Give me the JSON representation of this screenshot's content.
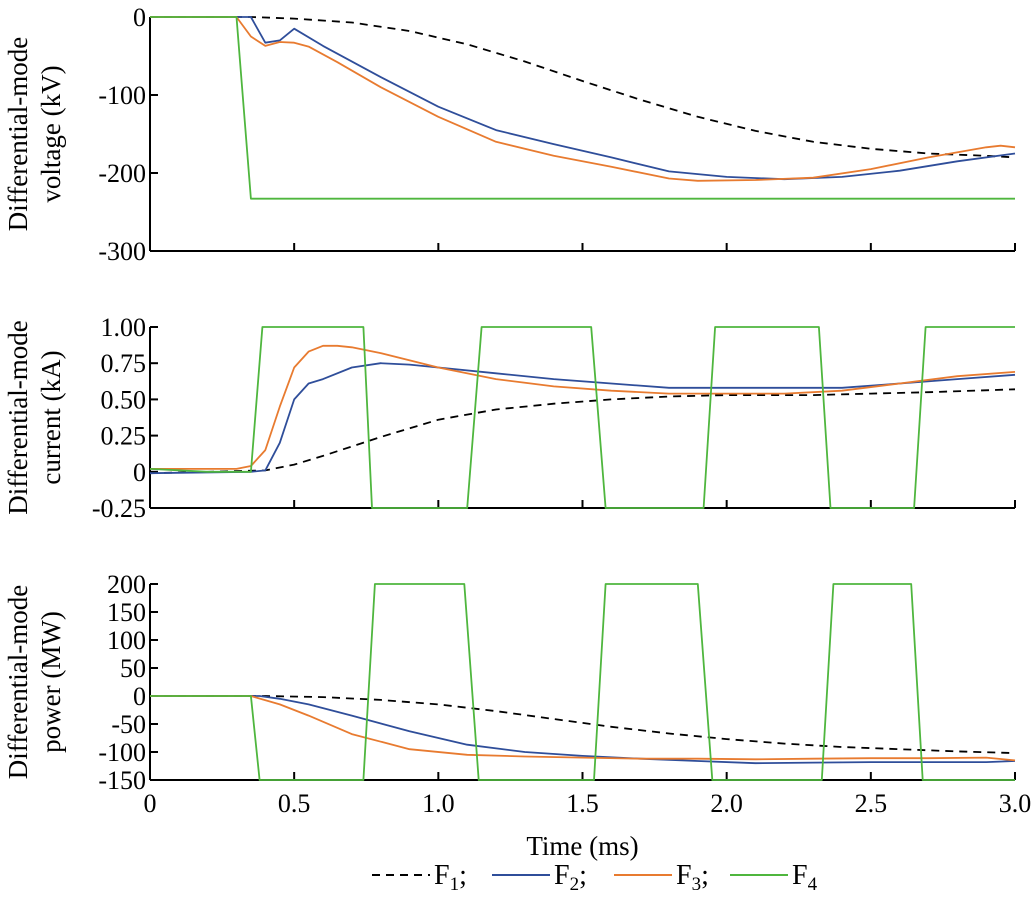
{
  "chart_data": [
    {
      "type": "line",
      "id": "voltage",
      "ylabel_lines": [
        "Differential-mode",
        "voltage (kV)"
      ],
      "xlim": [
        0,
        3.0
      ],
      "ylim": [
        -300,
        0
      ],
      "yticks": [
        0,
        -100,
        -200,
        -300
      ],
      "ytick_labels": [
        "0",
        "-100",
        "-200",
        "-300"
      ],
      "xticks": [
        0.5,
        1.0,
        1.5,
        2.0,
        2.5,
        3.0
      ],
      "series": [
        {
          "key": "F1",
          "color": "#000000",
          "dash": "8,6",
          "points": [
            [
              0,
              0
            ],
            [
              0.35,
              0
            ],
            [
              0.5,
              -2
            ],
            [
              0.7,
              -7
            ],
            [
              0.9,
              -18
            ],
            [
              1.1,
              -35
            ],
            [
              1.3,
              -57
            ],
            [
              1.5,
              -82
            ],
            [
              1.7,
              -106
            ],
            [
              1.9,
              -128
            ],
            [
              2.1,
              -146
            ],
            [
              2.3,
              -160
            ],
            [
              2.5,
              -169
            ],
            [
              2.7,
              -175
            ],
            [
              2.9,
              -178
            ],
            [
              3.0,
              -180
            ]
          ]
        },
        {
          "key": "F2",
          "color": "#2f4e9a",
          "dash": "",
          "points": [
            [
              0,
              0
            ],
            [
              0.35,
              0
            ],
            [
              0.4,
              -33
            ],
            [
              0.45,
              -30
            ],
            [
              0.5,
              -15
            ],
            [
              0.6,
              -37
            ],
            [
              0.8,
              -77
            ],
            [
              1.0,
              -115
            ],
            [
              1.2,
              -145
            ],
            [
              1.4,
              -163
            ],
            [
              1.6,
              -180
            ],
            [
              1.8,
              -198
            ],
            [
              2.0,
              -205
            ],
            [
              2.2,
              -208
            ],
            [
              2.4,
              -205
            ],
            [
              2.6,
              -197
            ],
            [
              2.8,
              -185
            ],
            [
              3.0,
              -175
            ]
          ]
        },
        {
          "key": "F3",
          "color": "#e87b30",
          "dash": "",
          "points": [
            [
              0,
              0
            ],
            [
              0.3,
              0
            ],
            [
              0.35,
              -25
            ],
            [
              0.4,
              -37
            ],
            [
              0.45,
              -32
            ],
            [
              0.5,
              -33
            ],
            [
              0.55,
              -38
            ],
            [
              0.65,
              -58
            ],
            [
              0.8,
              -90
            ],
            [
              1.0,
              -128
            ],
            [
              1.2,
              -160
            ],
            [
              1.4,
              -178
            ],
            [
              1.6,
              -192
            ],
            [
              1.8,
              -207
            ],
            [
              1.9,
              -210
            ],
            [
              2.1,
              -209
            ],
            [
              2.3,
              -206
            ],
            [
              2.5,
              -195
            ],
            [
              2.7,
              -180
            ],
            [
              2.9,
              -167
            ],
            [
              2.95,
              -165
            ],
            [
              3.0,
              -167
            ]
          ]
        },
        {
          "key": "F4",
          "color": "#4fb63e",
          "dash": "",
          "points": [
            [
              0,
              0
            ],
            [
              0.3,
              0
            ],
            [
              0.35,
              -233
            ],
            [
              3.0,
              -233
            ]
          ]
        }
      ]
    },
    {
      "type": "line",
      "id": "current",
      "ylabel_lines": [
        "Differential-mode",
        "current (kA)"
      ],
      "xlim": [
        0,
        3.0
      ],
      "ylim": [
        -0.25,
        1.0
      ],
      "yticks": [
        1.0,
        0.75,
        0.5,
        0.25,
        0,
        -0.25
      ],
      "ytick_labels": [
        "1.00",
        "0.75",
        "0.50",
        "0.25",
        "0",
        "-0.25"
      ],
      "xticks": [
        0.5,
        1.0,
        1.5,
        2.0,
        2.5,
        3.0
      ],
      "series": [
        {
          "key": "F1",
          "color": "#000000",
          "dash": "8,6",
          "points": [
            [
              0,
              -0.01
            ],
            [
              0.4,
              0.01
            ],
            [
              0.5,
              0.05
            ],
            [
              0.6,
              0.11
            ],
            [
              0.8,
              0.24
            ],
            [
              1.0,
              0.36
            ],
            [
              1.2,
              0.43
            ],
            [
              1.4,
              0.47
            ],
            [
              1.6,
              0.5
            ],
            [
              1.8,
              0.52
            ],
            [
              2.0,
              0.53
            ],
            [
              2.3,
              0.53
            ],
            [
              2.5,
              0.54
            ],
            [
              2.7,
              0.55
            ],
            [
              3.0,
              0.57
            ]
          ]
        },
        {
          "key": "F2",
          "color": "#2f4e9a",
          "dash": "",
          "points": [
            [
              0,
              -0.01
            ],
            [
              0.35,
              0.0
            ],
            [
              0.4,
              0.01
            ],
            [
              0.45,
              0.2
            ],
            [
              0.5,
              0.5
            ],
            [
              0.55,
              0.61
            ],
            [
              0.6,
              0.64
            ],
            [
              0.7,
              0.72
            ],
            [
              0.8,
              0.75
            ],
            [
              0.9,
              0.74
            ],
            [
              1.0,
              0.72
            ],
            [
              1.2,
              0.68
            ],
            [
              1.4,
              0.64
            ],
            [
              1.6,
              0.61
            ],
            [
              1.8,
              0.58
            ],
            [
              2.0,
              0.58
            ],
            [
              2.2,
              0.58
            ],
            [
              2.4,
              0.58
            ],
            [
              2.6,
              0.61
            ],
            [
              2.8,
              0.64
            ],
            [
              3.0,
              0.67
            ]
          ]
        },
        {
          "key": "F3",
          "color": "#e87b30",
          "dash": "",
          "points": [
            [
              0,
              0.02
            ],
            [
              0.3,
              0.02
            ],
            [
              0.35,
              0.04
            ],
            [
              0.4,
              0.15
            ],
            [
              0.45,
              0.45
            ],
            [
              0.5,
              0.72
            ],
            [
              0.55,
              0.83
            ],
            [
              0.6,
              0.87
            ],
            [
              0.65,
              0.87
            ],
            [
              0.7,
              0.86
            ],
            [
              0.8,
              0.82
            ],
            [
              1.0,
              0.72
            ],
            [
              1.2,
              0.64
            ],
            [
              1.4,
              0.59
            ],
            [
              1.6,
              0.56
            ],
            [
              1.8,
              0.54
            ],
            [
              2.0,
              0.54
            ],
            [
              2.2,
              0.54
            ],
            [
              2.4,
              0.56
            ],
            [
              2.6,
              0.61
            ],
            [
              2.8,
              0.66
            ],
            [
              3.0,
              0.69
            ]
          ]
        },
        {
          "key": "F4",
          "color": "#4fb63e",
          "dash": "",
          "points": [
            [
              0,
              0.02
            ],
            [
              0.2,
              0.0
            ],
            [
              0.35,
              0.0
            ],
            [
              0.39,
              1.0
            ],
            [
              0.42,
              1.0
            ],
            [
              0.74,
              1.0
            ],
            [
              0.77,
              -0.25
            ],
            [
              1.1,
              -0.25
            ],
            [
              1.15,
              1.0
            ],
            [
              1.53,
              1.0
            ],
            [
              1.58,
              -0.25
            ],
            [
              1.92,
              -0.25
            ],
            [
              1.96,
              1.0
            ],
            [
              2.32,
              1.0
            ],
            [
              2.36,
              -0.25
            ],
            [
              2.65,
              -0.25
            ],
            [
              2.69,
              1.0
            ],
            [
              3.0,
              1.0
            ]
          ]
        }
      ]
    },
    {
      "type": "line",
      "id": "power",
      "ylabel_lines": [
        "Differential-mode",
        "power (MW)"
      ],
      "xlim": [
        0,
        3.0
      ],
      "ylim": [
        -150,
        200
      ],
      "yticks": [
        200,
        150,
        100,
        50,
        0,
        -50,
        -100,
        -150
      ],
      "ytick_labels": [
        "200",
        "150",
        "100",
        "50",
        "0",
        "-50",
        "-100",
        "-150"
      ],
      "xticks": [
        0,
        0.5,
        1.0,
        1.5,
        2.0,
        2.5,
        3.0
      ],
      "xtick_labels": [
        "0",
        "0.5",
        "1.0",
        "1.5",
        "2.0",
        "2.5",
        "3.0"
      ],
      "xlabel": "Time (ms)",
      "series": [
        {
          "key": "F1",
          "color": "#000000",
          "dash": "8,6",
          "points": [
            [
              0,
              0
            ],
            [
              0.4,
              0
            ],
            [
              0.6,
              -2
            ],
            [
              0.8,
              -7
            ],
            [
              1.0,
              -15
            ],
            [
              1.2,
              -27
            ],
            [
              1.4,
              -41
            ],
            [
              1.6,
              -55
            ],
            [
              1.8,
              -67
            ],
            [
              2.0,
              -77
            ],
            [
              2.2,
              -85
            ],
            [
              2.4,
              -91
            ],
            [
              2.6,
              -95
            ],
            [
              2.8,
              -99
            ],
            [
              3.0,
              -102
            ]
          ]
        },
        {
          "key": "F2",
          "color": "#2f4e9a",
          "dash": "",
          "points": [
            [
              0,
              0
            ],
            [
              0.38,
              0
            ],
            [
              0.45,
              -5
            ],
            [
              0.55,
              -15
            ],
            [
              0.7,
              -35
            ],
            [
              0.9,
              -63
            ],
            [
              1.1,
              -87
            ],
            [
              1.3,
              -100
            ],
            [
              1.5,
              -107
            ],
            [
              1.7,
              -112
            ],
            [
              1.9,
              -116
            ],
            [
              2.1,
              -120
            ],
            [
              2.3,
              -119
            ],
            [
              2.5,
              -118
            ],
            [
              2.7,
              -118
            ],
            [
              2.9,
              -118
            ],
            [
              3.0,
              -116
            ]
          ]
        },
        {
          "key": "F3",
          "color": "#e87b30",
          "dash": "",
          "points": [
            [
              0,
              0
            ],
            [
              0.35,
              0
            ],
            [
              0.45,
              -15
            ],
            [
              0.55,
              -35
            ],
            [
              0.7,
              -68
            ],
            [
              0.9,
              -95
            ],
            [
              1.1,
              -105
            ],
            [
              1.3,
              -108
            ],
            [
              1.5,
              -110
            ],
            [
              1.7,
              -112
            ],
            [
              1.9,
              -112
            ],
            [
              2.1,
              -113
            ],
            [
              2.3,
              -112
            ],
            [
              2.5,
              -111
            ],
            [
              2.7,
              -111
            ],
            [
              2.9,
              -110
            ],
            [
              3.0,
              -115
            ]
          ]
        },
        {
          "key": "F4",
          "color": "#4fb63e",
          "dash": "",
          "points": [
            [
              0,
              0
            ],
            [
              0.35,
              0
            ],
            [
              0.38,
              -150
            ],
            [
              0.74,
              -150
            ],
            [
              0.78,
              200
            ],
            [
              1.09,
              200
            ],
            [
              1.14,
              -150
            ],
            [
              1.54,
              -150
            ],
            [
              1.58,
              200
            ],
            [
              1.9,
              200
            ],
            [
              1.95,
              -150
            ],
            [
              2.33,
              -150
            ],
            [
              2.37,
              200
            ],
            [
              2.64,
              200
            ],
            [
              2.68,
              -150
            ],
            [
              3.0,
              -150
            ]
          ]
        }
      ]
    }
  ],
  "legend": {
    "items": [
      {
        "key": "F1",
        "letter": "F",
        "sub": "1",
        "sep": ";",
        "color": "#000000",
        "dash": "8,6"
      },
      {
        "key": "F2",
        "letter": "F",
        "sub": "2",
        "sep": ";",
        "color": "#2f4e9a",
        "dash": ""
      },
      {
        "key": "F3",
        "letter": "F",
        "sub": "3",
        "sep": ";",
        "color": "#e87b30",
        "dash": ""
      },
      {
        "key": "F4",
        "letter": "F",
        "sub": "4",
        "sep": "",
        "color": "#4fb63e",
        "dash": ""
      }
    ]
  }
}
